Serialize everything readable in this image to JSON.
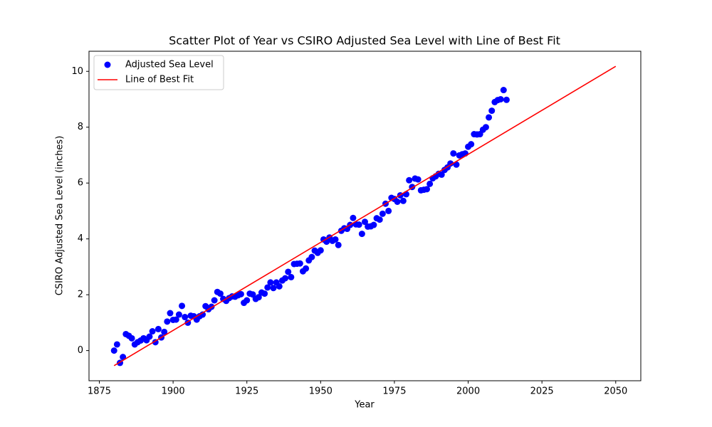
{
  "chart_data": {
    "type": "scatter",
    "title": "Scatter Plot of Year vs CSIRO Adjusted Sea Level with Line of Best Fit",
    "xlabel": "Year",
    "ylabel": "CSIRO Adjusted Sea Level (inches)",
    "xlim": [
      1871.5,
      2058.5
    ],
    "xticks": [
      1875,
      1900,
      1925,
      1950,
      1975,
      2000,
      2025,
      2050
    ],
    "ylim": [
      -1.08,
      10.72
    ],
    "yticks": [
      0,
      2,
      4,
      6,
      8,
      10
    ],
    "legend": "upper left",
    "grid": false,
    "series": [
      {
        "name": "Adjusted Sea Level",
        "color": "#0000ff",
        "type": "scatter",
        "x": [
          1880,
          1881,
          1882,
          1883,
          1884,
          1885,
          1886,
          1887,
          1888,
          1889,
          1890,
          1891,
          1892,
          1893,
          1894,
          1895,
          1896,
          1897,
          1898,
          1899,
          1900,
          1901,
          1902,
          1903,
          1904,
          1905,
          1906,
          1907,
          1908,
          1909,
          1910,
          1911,
          1912,
          1913,
          1914,
          1915,
          1916,
          1917,
          1918,
          1919,
          1920,
          1921,
          1922,
          1923,
          1924,
          1925,
          1926,
          1927,
          1928,
          1929,
          1930,
          1931,
          1932,
          1933,
          1934,
          1935,
          1936,
          1937,
          1938,
          1939,
          1940,
          1941,
          1942,
          1943,
          1944,
          1945,
          1946,
          1947,
          1948,
          1949,
          1950,
          1951,
          1952,
          1953,
          1954,
          1955,
          1956,
          1957,
          1958,
          1959,
          1960,
          1961,
          1962,
          1963,
          1964,
          1965,
          1966,
          1967,
          1968,
          1969,
          1970,
          1971,
          1972,
          1973,
          1974,
          1975,
          1976,
          1977,
          1978,
          1979,
          1980,
          1981,
          1982,
          1983,
          1984,
          1985,
          1986,
          1987,
          1988,
          1989,
          1990,
          1991,
          1992,
          1993,
          1994,
          1995,
          1996,
          1997,
          1998,
          1999,
          2000,
          2001,
          2002,
          2003,
          2004,
          2005,
          2006,
          2007,
          2008,
          2009,
          2010,
          2011,
          2012,
          2013
        ],
        "values": [
          0,
          0.22,
          -0.44,
          -0.23,
          0.59,
          0.53,
          0.44,
          0.22,
          0.3,
          0.36,
          0.44,
          0.37,
          0.5,
          0.69,
          0.3,
          0.77,
          0.47,
          0.67,
          1.04,
          1.34,
          1.1,
          1.11,
          1.29,
          1.6,
          1.2,
          1,
          1.25,
          1.23,
          1.11,
          1.23,
          1.29,
          1.59,
          1.48,
          1.57,
          1.8,
          2.1,
          2.04,
          1.85,
          1.78,
          1.88,
          1.94,
          1.93,
          1.98,
          2.02,
          1.71,
          1.8,
          2.04,
          2.01,
          1.85,
          1.91,
          2.08,
          2.04,
          2.26,
          2.44,
          2.24,
          2.44,
          2.3,
          2.51,
          2.59,
          2.82,
          2.63,
          3.1,
          3.11,
          3.12,
          2.84,
          2.94,
          3.23,
          3.35,
          3.58,
          3.5,
          3.59,
          3.98,
          3.9,
          4.05,
          3.93,
          3.98,
          3.78,
          4.29,
          4.38,
          4.36,
          4.5,
          4.75,
          4.52,
          4.51,
          4.18,
          4.61,
          4.44,
          4.45,
          4.5,
          4.74,
          4.69,
          4.9,
          5.26,
          5,
          5.47,
          5.43,
          5.33,
          5.56,
          5.36,
          5.6,
          6.1,
          5.86,
          6.16,
          6.13,
          5.74,
          5.76,
          5.78,
          5.97,
          6.17,
          6.24,
          6.33,
          6.3,
          6.47,
          6.56,
          6.7,
          7.06,
          6.66,
          6.99,
          7.03,
          7.06,
          7.3,
          7.39,
          7.75,
          7.74,
          7.75,
          7.91,
          8,
          8.35,
          8.59,
          8.9,
          8.97,
          9,
          9.33,
          8.98
        ]
      },
      {
        "name": "Line of Best Fit",
        "color": "#ff0000",
        "type": "line",
        "x": [
          1880,
          2050
        ],
        "values": [
          -0.54,
          10.18
        ]
      }
    ]
  }
}
